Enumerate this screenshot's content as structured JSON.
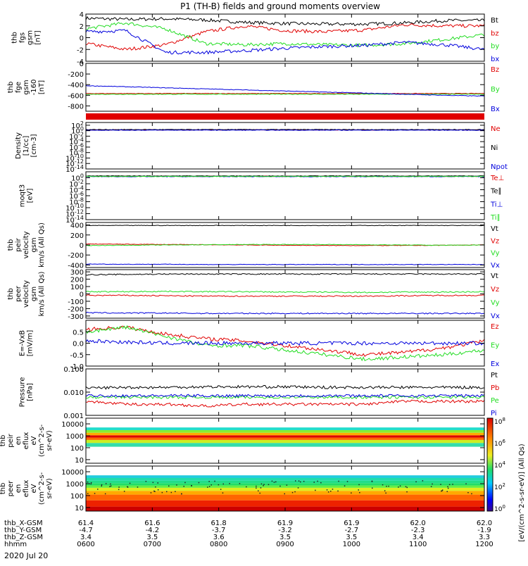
{
  "title": "P1 (TH-B) fields and ground moments overview",
  "date_label": "2020 Jul 20",
  "colors": {
    "black": "#000000",
    "red": "#e00000",
    "green": "#22dd22",
    "blue": "#0000dd",
    "purple": "#7a1fa0"
  },
  "chart_data": [
    {
      "type": "line",
      "panel": "fgs",
      "ylabel": [
        "thb",
        "fgs",
        "gsm",
        "[nT]"
      ],
      "ylim": [
        -4,
        4
      ],
      "yticks": [
        "4",
        "2",
        "0",
        "-2",
        "-4"
      ],
      "ytick_values": [
        4,
        2,
        0,
        -2,
        -4
      ],
      "series": [
        {
          "name": "Bt",
          "color": "#000000",
          "values": [
            3.3,
            3.1,
            3.2,
            3.0,
            2.6,
            2.4,
            2.3,
            2.3,
            2.5,
            2.9,
            2.9
          ]
        },
        {
          "name": "bz",
          "color": "#e00000",
          "values": [
            -1.0,
            -2.0,
            -1.2,
            1.0,
            2.0,
            1.2,
            1.0,
            1.3,
            2.2,
            2.0,
            2.0
          ]
        },
        {
          "name": "by",
          "color": "#22dd22",
          "values": [
            1.5,
            2.5,
            1.5,
            -1.0,
            -1.2,
            -1.0,
            -1.2,
            -1.3,
            -1.0,
            -0.3,
            0.5
          ]
        },
        {
          "name": "bx",
          "color": "#0000dd",
          "values": [
            1.0,
            1.2,
            -2.5,
            -2.5,
            -2.2,
            -1.8,
            -1.5,
            -1.3,
            -0.8,
            -1.2,
            -2.0
          ]
        }
      ]
    },
    {
      "type": "line",
      "panel": "fge",
      "ylabel": [
        "thb",
        "fge",
        "gsm",
        "-160",
        "[nT]"
      ],
      "ylim": [
        -900,
        0
      ],
      "yticks": [
        "0",
        "-200",
        "-400",
        "-600",
        "-800"
      ],
      "ytick_values": [
        0,
        -200,
        -400,
        -600,
        -800
      ],
      "series": [
        {
          "name": "Bz",
          "color": "#e00000",
          "values": [
            -567,
            -567,
            -567,
            -567,
            -567,
            -567,
            -567,
            -567,
            -567,
            -567,
            -567
          ]
        },
        {
          "name": "By",
          "color": "#22dd22",
          "values": [
            -580,
            -580,
            -580,
            -580,
            -580,
            -580,
            -580,
            -580,
            -580,
            -580,
            -580
          ]
        },
        {
          "name": "Bx",
          "color": "#0000dd",
          "values": [
            -420,
            -440,
            -460,
            -480,
            -500,
            -520,
            -540,
            -560,
            -580,
            -600,
            -615
          ]
        }
      ]
    },
    {
      "type": "line",
      "panel": "density",
      "log": true,
      "ylabel": [
        "Density",
        "[1/cc]",
        "[cm-3]"
      ],
      "ylim": [
        -14,
        3
      ],
      "yticks": [
        "10^2",
        "10^0",
        "10^-2",
        "10^-4",
        "10^-6",
        "10^-8",
        "10^-10",
        "10^-12",
        "10^-14"
      ],
      "ytick_values": [
        2,
        0,
        -2,
        -4,
        -6,
        -8,
        -10,
        -12,
        -14
      ],
      "series": [
        {
          "name": "Ne",
          "color": "#e00000",
          "values": [
            0.3,
            0.3,
            0.3,
            0.3,
            0.3,
            0.3,
            0.3,
            0.3,
            0.3,
            0.3,
            0.3
          ]
        },
        {
          "name": "Ni",
          "color": "#000000",
          "values": [
            0.4,
            0.4,
            0.4,
            0.4,
            0.4,
            0.4,
            0.4,
            0.4,
            0.4,
            0.4,
            0.4
          ]
        },
        {
          "name": "Npot",
          "color": "#0000dd",
          "values": [
            0.2,
            0.2,
            0.2,
            0.2,
            0.2,
            0.2,
            0.2,
            0.2,
            0.2,
            0.2,
            0.2
          ]
        }
      ]
    },
    {
      "type": "line",
      "panel": "temperature",
      "log": true,
      "ylabel": [
        "moqt3",
        "[eV]"
      ],
      "ylim": [
        -14,
        2
      ],
      "yticks": [
        "10^0",
        "10^-2",
        "10^-4",
        "10^-6",
        "10^-8",
        "10^-10",
        "10^-12",
        "10^-14"
      ],
      "ytick_values": [
        0,
        -2,
        -4,
        -6,
        -8,
        -10,
        -12,
        -14
      ],
      "series": [
        {
          "name": "Te⊥",
          "color": "#e00000",
          "values": [
            0.5,
            0.5,
            0.5,
            0.5,
            0.5,
            0.5,
            0.5,
            0.5,
            0.5,
            0.5,
            0.5
          ]
        },
        {
          "name": "Te∥",
          "color": "#000000",
          "values": [
            0.6,
            0.6,
            0.6,
            0.6,
            0.6,
            0.6,
            0.6,
            0.6,
            0.6,
            0.6,
            0.6
          ]
        },
        {
          "name": "Ti⊥",
          "color": "#0000dd",
          "values": [
            0.4,
            0.4,
            0.4,
            0.4,
            0.4,
            0.4,
            0.4,
            0.4,
            0.4,
            0.4,
            0.4
          ]
        },
        {
          "name": "Ti∥",
          "color": "#22dd22",
          "values": [
            0.45,
            0.45,
            0.45,
            0.45,
            0.45,
            0.45,
            0.45,
            0.45,
            0.45,
            0.45,
            0.45
          ]
        }
      ]
    },
    {
      "type": "line",
      "panel": "peir-velocity",
      "ylabel": [
        "thb",
        "peir",
        "velocity",
        "gsm",
        "km/s (All Qs)"
      ],
      "ylim": [
        -450,
        450
      ],
      "yticks": [
        "400",
        "200",
        "0",
        "-200",
        "-400"
      ],
      "ytick_values": [
        400,
        200,
        0,
        -200,
        -400
      ],
      "series": [
        {
          "name": "Vt",
          "color": "#000000",
          "values": [
            390,
            390,
            390,
            390,
            390,
            390,
            390,
            390,
            390,
            390,
            390
          ]
        },
        {
          "name": "Vz",
          "color": "#e00000",
          "values": [
            20,
            15,
            10,
            5,
            0,
            -5,
            -10,
            -10,
            -10,
            -5,
            0
          ]
        },
        {
          "name": "Vy",
          "color": "#22dd22",
          "values": [
            -10,
            -5,
            0,
            5,
            10,
            10,
            10,
            5,
            0,
            -5,
            0
          ]
        },
        {
          "name": "Vx",
          "color": "#0000dd",
          "values": [
            -380,
            -385,
            -385,
            -390,
            -390,
            -390,
            -390,
            -390,
            -390,
            -390,
            -390
          ]
        }
      ]
    },
    {
      "type": "line",
      "panel": "peer-velocity",
      "ylabel": [
        "thb",
        "peer",
        "velocity",
        "gsm",
        "km/s (All Qs)"
      ],
      "ylim": [
        -330,
        330
      ],
      "yticks": [
        "300",
        "200",
        "100",
        "0",
        "-100",
        "-200",
        "-300"
      ],
      "ytick_values": [
        300,
        200,
        100,
        0,
        -100,
        -200,
        -300
      ],
      "series": [
        {
          "name": "Vt",
          "color": "#000000",
          "values": [
            260,
            265,
            270,
            270,
            270,
            270,
            270,
            270,
            270,
            270,
            270
          ]
        },
        {
          "name": "Vz",
          "color": "#e00000",
          "values": [
            -20,
            -20,
            -25,
            -30,
            -30,
            -30,
            -30,
            -30,
            -25,
            -20,
            -20
          ]
        },
        {
          "name": "Vy",
          "color": "#22dd22",
          "values": [
            30,
            30,
            35,
            30,
            30,
            25,
            25,
            20,
            25,
            25,
            30
          ]
        },
        {
          "name": "Vx",
          "color": "#0000dd",
          "values": [
            -255,
            -260,
            -260,
            -265,
            -265,
            -265,
            -265,
            -265,
            -265,
            -265,
            -265
          ]
        }
      ]
    },
    {
      "type": "line",
      "panel": "efield",
      "ylabel": [
        "E=-VxB",
        "[mV/m]"
      ],
      "ylim": [
        -1.0,
        1.0
      ],
      "yticks": [
        "0.5",
        "0.0",
        "-0.5",
        "-1.0"
      ],
      "ytick_values": [
        0.5,
        0,
        -0.5,
        -1.0
      ],
      "series": [
        {
          "name": "Ez",
          "color": "#e00000",
          "values": [
            0.6,
            0.7,
            0.4,
            0.2,
            0.1,
            -0.1,
            -0.3,
            -0.5,
            -0.4,
            -0.2,
            0.1
          ]
        },
        {
          "name": "Ey",
          "color": "#22dd22",
          "values": [
            0.5,
            0.7,
            0.3,
            -0.1,
            -0.1,
            -0.3,
            -0.5,
            -0.7,
            -0.6,
            -0.5,
            -0.3
          ]
        },
        {
          "name": "Ex",
          "color": "#0000dd",
          "values": [
            0.1,
            0.05,
            0.0,
            0.0,
            0.0,
            0.0,
            0.0,
            0.0,
            0.0,
            0.0,
            0.0
          ]
        }
      ]
    },
    {
      "type": "line",
      "panel": "pressure",
      "log": true,
      "ylabel": [
        "Pressure",
        "[nPa]"
      ],
      "ylim": [
        -3,
        -1
      ],
      "yticks": [
        "0.100",
        "0.010",
        "0.001"
      ],
      "ytick_values": [
        -1,
        -2,
        -3
      ],
      "series": [
        {
          "name": "Pt",
          "color": "#000000",
          "values": [
            0.015,
            0.016,
            0.016,
            0.017,
            0.017,
            0.017,
            0.016,
            0.016,
            0.016,
            0.016,
            0.016
          ]
        },
        {
          "name": "Pb",
          "color": "#e00000",
          "values": [
            0.004,
            0.003,
            0.003,
            0.0025,
            0.003,
            0.003,
            0.003,
            0.003,
            0.004,
            0.004,
            0.004
          ]
        },
        {
          "name": "Pe",
          "color": "#22dd22",
          "values": [
            0.006,
            0.006,
            0.006,
            0.006,
            0.006,
            0.006,
            0.006,
            0.006,
            0.006,
            0.006,
            0.006
          ]
        },
        {
          "name": "Pi",
          "color": "#0000dd",
          "values": [
            0.007,
            0.007,
            0.007,
            0.007,
            0.007,
            0.007,
            0.007,
            0.007,
            0.007,
            0.007,
            0.007
          ]
        }
      ]
    },
    {
      "type": "heatmap",
      "panel": "peir-eflux",
      "ylabel": [
        "thb",
        "peir",
        "en",
        "eflux",
        "eV",
        "(cm^2-s-",
        "sr-eV)"
      ],
      "yscale": "log",
      "ylim": [
        5,
        30000
      ],
      "yticks": [
        "10000",
        "1000",
        "100",
        "10"
      ],
      "ytick_values": [
        10000,
        1000,
        100,
        10
      ]
    },
    {
      "type": "heatmap",
      "panel": "peer-eflux",
      "ylabel": [
        "thb",
        "peer",
        "en",
        "eflux",
        "eV",
        "(cm^2-s-",
        "sr-eV)"
      ],
      "yscale": "log",
      "ylim": [
        5,
        30000
      ],
      "yticks": [
        "10000",
        "1000",
        "100",
        "10"
      ],
      "ytick_values": [
        10000,
        1000,
        100,
        10
      ]
    }
  ],
  "colorbar": {
    "label": "[eV/(cm^2-s-sr-eV)] (All Qs)",
    "ticks": [
      "10^8",
      "10^6",
      "10^4",
      "10^2",
      "10^0"
    ],
    "tick_values": [
      8,
      6,
      4,
      2,
      0
    ]
  },
  "x_axis": {
    "row_labels": [
      "thb_X-GSM",
      "thb_Y-GSM",
      "thb_Z-GSM",
      "hhmm"
    ],
    "ticks": [
      {
        "x": "61.4",
        "y": "-4.7",
        "z": "3.4",
        "t": "0600"
      },
      {
        "x": "61.6",
        "y": "-4.2",
        "z": "3.5",
        "t": "0700"
      },
      {
        "x": "61.8",
        "y": "-3.7",
        "z": "3.6",
        "t": "0800"
      },
      {
        "x": "61.9",
        "y": "-3.2",
        "z": "3.5",
        "t": "0900"
      },
      {
        "x": "61.9",
        "y": "-2.7",
        "z": "3.5",
        "t": "1000"
      },
      {
        "x": "62.0",
        "y": "-2.3",
        "z": "3.4",
        "t": "1100"
      },
      {
        "x": "62.0",
        "y": "-1.9",
        "z": "3.3",
        "t": "1200"
      }
    ]
  }
}
